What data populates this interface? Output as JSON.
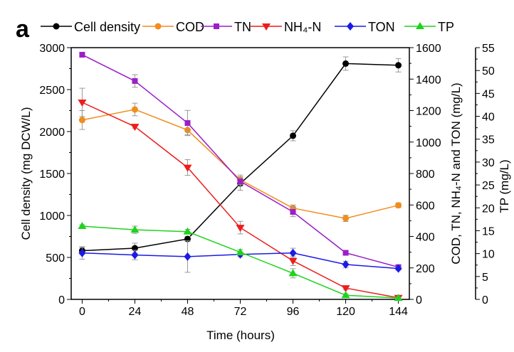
{
  "chart_data": {
    "type": "line",
    "panel_label": "a",
    "xlabel": "Time (hours)",
    "ylabel_left": "Cell density (mg DCW/L)",
    "ylabel_right": "COD, TN, NH₄-N and TON (mg/L)",
    "ylabel_right2": "TP (mg/L)",
    "x": [
      0,
      24,
      48,
      72,
      96,
      120,
      144
    ],
    "xticks": [
      "0",
      "24",
      "48",
      "72",
      "96",
      "120",
      "144"
    ],
    "xlim": [
      -5,
      149
    ],
    "ylim_left": [
      0,
      3000
    ],
    "yticks_left": [
      "0",
      "500",
      "1000",
      "1500",
      "2000",
      "2500",
      "3000"
    ],
    "ylim_right": [
      0,
      1600
    ],
    "yticks_right": [
      "0",
      "200",
      "400",
      "600",
      "800",
      "1000",
      "1200",
      "1400",
      "1600"
    ],
    "ylim_right2": [
      0,
      55
    ],
    "yticks_right2": [
      "0",
      "5",
      "10",
      "15",
      "20",
      "25",
      "30",
      "35",
      "40",
      "45",
      "50",
      "55"
    ],
    "grid": false,
    "legend_position": "top",
    "series": [
      {
        "name": "Cell density",
        "axis": "left",
        "color": "#000000",
        "marker": "circle",
        "values": [
          580,
          610,
          720,
          1380,
          1950,
          2810,
          2790
        ],
        "errors": [
          40,
          60,
          30,
          80,
          60,
          80,
          80
        ]
      },
      {
        "name": "COD",
        "axis": "right",
        "color": "#f28c1c",
        "marker": "circle",
        "values": [
          1140,
          1207,
          1076,
          760,
          580,
          515,
          598
        ],
        "errors": [
          60,
          40,
          30,
          30,
          20,
          20,
          15
        ]
      },
      {
        "name": "TN",
        "axis": "right",
        "color": "#9b1fc9",
        "marker": "square",
        "values": [
          1555,
          1388,
          1121,
          750,
          556,
          296,
          205
        ],
        "errors": [
          15,
          40,
          80,
          30,
          30,
          15,
          10
        ]
      },
      {
        "name": "NH₄-N",
        "axis": "right",
        "color": "#ee1c1c",
        "marker": "triangle-down",
        "values": [
          1252,
          1098,
          838,
          456,
          245,
          72,
          10
        ],
        "errors": [
          90,
          10,
          50,
          40,
          30,
          10,
          5
        ]
      },
      {
        "name": "TON",
        "axis": "right",
        "color": "#1a1ae6",
        "marker": "diamond",
        "values": [
          295,
          282,
          272,
          286,
          295,
          222,
          196
        ],
        "errors": [
          40,
          30,
          100,
          15,
          30,
          20,
          10
        ]
      },
      {
        "name": "TP",
        "axis": "right2",
        "color": "#1ed31e",
        "marker": "triangle-up",
        "values": [
          16.0,
          15.2,
          14.8,
          10.3,
          5.7,
          0.9,
          0.3
        ],
        "errors": [
          0.3,
          0.8,
          0.5,
          0.6,
          1.0,
          0.3,
          0.2
        ]
      }
    ]
  }
}
